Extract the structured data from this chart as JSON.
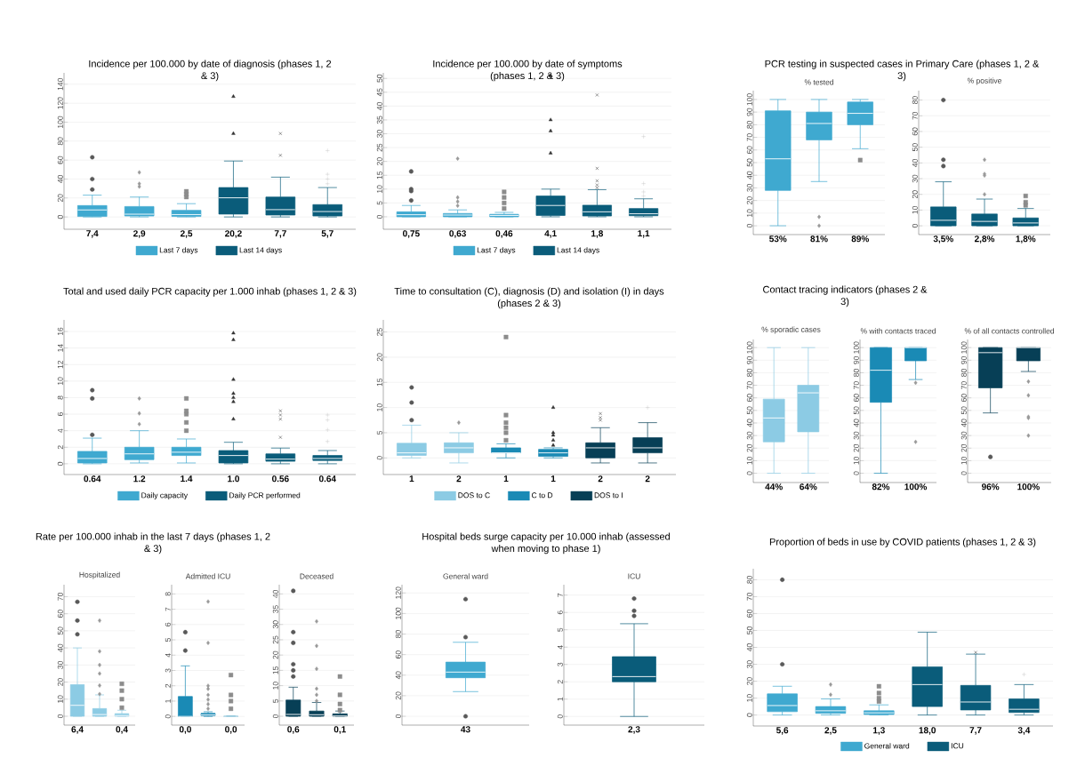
{
  "chart_data": [
    {
      "type": "box",
      "title": "Incidence per 100.000 by date of diagnosis (phases 1, 2 & 3)",
      "categories": [
        "7,4",
        "2,9",
        "2,5",
        "20,2",
        "7,7",
        "5,7"
      ],
      "ylim": [
        -13,
        152
      ],
      "yticks": [
        0,
        20,
        40,
        60,
        80,
        100,
        120,
        140
      ],
      "grid": "y",
      "legend": "bottom",
      "series": [
        {
          "name": "Last 7 days",
          "color": "#3fa9d0",
          "boxes": [
            {
              "low": 0,
              "q1": 0.5,
              "median": 7.4,
              "q3": 12,
              "high": 23,
              "outliers": [
                29,
                40,
                63
              ]
            },
            {
              "low": 0,
              "q1": 1,
              "median": 2.9,
              "q3": 11,
              "high": 21,
              "outliers": [
                32,
                35,
                47
              ]
            },
            {
              "low": 0,
              "q1": 0.5,
              "median": 2.5,
              "q3": 7,
              "high": 14,
              "outliers": [
                21,
                24,
                27
              ]
            },
            null,
            null,
            null
          ]
        },
        {
          "name": "Last 14 days",
          "color": "#0a5c7a",
          "boxes": [
            null,
            null,
            null,
            {
              "low": 0,
              "q1": 3,
              "median": 20.2,
              "q3": 31,
              "high": 59,
              "outliers": [
                88,
                127
              ]
            },
            {
              "low": 0,
              "q1": 2,
              "median": 7.7,
              "q3": 21,
              "high": 42,
              "outliers": [
                65,
                88
              ]
            },
            {
              "low": 0,
              "q1": 1,
              "median": 5.7,
              "q3": 13,
              "high": 31,
              "outliers": [
                35,
                40,
                45,
                70
              ]
            }
          ]
        }
      ]
    },
    {
      "type": "box",
      "title": "Incidence per 100.000 by date of symptoms (phases 1, 2 & 3)",
      "categories": [
        "0,75",
        "0,63",
        "0,46",
        "4,1",
        "1,8",
        "1,1"
      ],
      "ylim": [
        -4.5,
        52
      ],
      "yticks": [
        0,
        5,
        10,
        15,
        20,
        25,
        30,
        35,
        40,
        45,
        50
      ],
      "grid": "y",
      "legend": "bottom",
      "series": [
        {
          "name": "Last 7 days",
          "color": "#3fa9d0",
          "boxes": [
            {
              "low": 0,
              "q1": 0,
              "median": 0.75,
              "q3": 1.8,
              "high": 4.1,
              "outliers": [
                5.9,
                9.3,
                10,
                16.4
              ]
            },
            {
              "low": 0,
              "q1": 0,
              "median": 0.63,
              "q3": 1.2,
              "high": 2.5,
              "outliers": [
                4,
                5.5,
                7,
                21
              ]
            },
            {
              "low": 0,
              "q1": 0,
              "median": 0.46,
              "q3": 0.9,
              "high": 1.6,
              "outliers": [
                3,
                5,
                7,
                9
              ]
            },
            null,
            null,
            null
          ]
        },
        {
          "name": "Last 14 days",
          "color": "#0a5c7a",
          "boxes": [
            null,
            null,
            null,
            {
              "low": 0,
              "q1": 0.5,
              "median": 4.1,
              "q3": 7.5,
              "high": 10,
              "outliers": [
                23,
                31,
                35,
                51
              ]
            },
            {
              "low": 0,
              "q1": 0.3,
              "median": 1.8,
              "q3": 4.2,
              "high": 9.8,
              "outliers": [
                10.5,
                11.5,
                13,
                17.5,
                44
              ]
            },
            {
              "low": 0,
              "q1": 0.4,
              "median": 1.1,
              "q3": 3,
              "high": 6.5,
              "outliers": [
                7.5,
                9,
                12,
                29
              ]
            }
          ]
        }
      ]
    },
    {
      "type": "box",
      "title": "PCR testing in suspected cases in Primary Care (phases 1, 2 & 3)",
      "subtitle": "% tested",
      "categories": [
        "53%",
        "81%",
        "89%"
      ],
      "ylim": [
        -7,
        107
      ],
      "yticks": [
        0,
        10,
        20,
        30,
        40,
        50,
        60,
        70,
        80,
        90,
        100
      ],
      "grid": "y",
      "series": [
        {
          "color": "#3fa9d0",
          "boxes": [
            {
              "low": 0,
              "q1": 28,
              "median": 53,
              "q3": 91,
              "high": 100
            },
            {
              "low": 35,
              "q1": 68,
              "median": 81,
              "q3": 90,
              "high": 100,
              "outliers": [
                0,
                7
              ]
            },
            {
              "low": 61,
              "q1": 80,
              "median": 89,
              "q3": 98,
              "high": 100,
              "outliers": [
                52
              ]
            }
          ]
        }
      ]
    },
    {
      "type": "box",
      "subtitle": "% positive",
      "categories": [
        "3,5%",
        "2,8%",
        "1,8%"
      ],
      "ylim": [
        -5.6,
        86
      ],
      "yticks": [
        0,
        10,
        20,
        30,
        40,
        50,
        60,
        70,
        80
      ],
      "grid": "y",
      "series": [
        {
          "color": "#0a5c7a",
          "boxes": [
            {
              "low": 0,
              "q1": 0,
              "median": 3.5,
              "q3": 12,
              "high": 28,
              "outliers": [
                38,
                42,
                80
              ]
            },
            {
              "low": 0,
              "q1": 0,
              "median": 2.8,
              "q3": 7.5,
              "high": 17,
              "outliers": [
                20,
                32,
                33,
                42
              ]
            },
            {
              "low": 0,
              "q1": 0,
              "median": 1.8,
              "q3": 5,
              "high": 11,
              "outliers": [
                13,
                15,
                19
              ]
            }
          ]
        }
      ]
    },
    {
      "type": "box",
      "title": "Total and used daily PCR capacity per 1.000 inhab (phases 1, 2 & 3)",
      "categories": [
        "0.64",
        "1.2",
        "1.4",
        "1.0",
        "0.56",
        "0.64"
      ],
      "ylim": [
        -1.3,
        17.4
      ],
      "yticks": [
        0,
        2,
        4,
        6,
        8,
        10,
        12,
        14,
        16
      ],
      "grid": "y",
      "legend": "bottom",
      "series": [
        {
          "name": "Daily capacity",
          "color": "#3fa9d0",
          "boxes": [
            {
              "low": 0,
              "q1": 0.1,
              "median": 0.64,
              "q3": 1.5,
              "high": 3.1,
              "outliers": [
                3.5,
                7.9,
                8.9
              ]
            },
            {
              "low": 0.1,
              "q1": 0.5,
              "median": 1.2,
              "q3": 2,
              "high": 4,
              "outliers": [
                4.8,
                6.1,
                7.9
              ]
            },
            {
              "low": 0.1,
              "q1": 1,
              "median": 1.4,
              "q3": 2,
              "high": 3,
              "outliers": [
                4,
                5,
                6,
                6.4,
                7.9
              ]
            },
            null,
            null,
            null
          ]
        },
        {
          "name": "Daily PCR performed",
          "color": "#0a5c7a",
          "boxes": [
            null,
            null,
            null,
            {
              "low": 0,
              "q1": 0.1,
              "median": 1.0,
              "q3": 1.6,
              "high": 2.6,
              "outliers": [
                5.4,
                7.5,
                8,
                8.5,
                10.2,
                15,
                15.8
              ]
            },
            {
              "low": 0,
              "q1": 0.3,
              "median": 0.56,
              "q3": 1.2,
              "high": 1.9,
              "outliers": [
                3.2,
                5.4,
                5.9,
                6.4
              ]
            },
            {
              "low": 0,
              "q1": 0.4,
              "median": 0.64,
              "q3": 1,
              "high": 1.6,
              "outliers": [
                2.7,
                4.1,
                5.3,
                5.9
              ]
            }
          ]
        }
      ]
    },
    {
      "type": "box",
      "title": "Time to consultation (C), diagnosis (D) and isolation (I) in days (phases 2 & 3)",
      "categories": [
        "1",
        "2",
        "1",
        "1",
        "2",
        "2"
      ],
      "ylim": [
        -3.3,
        27.4
      ],
      "yticks": [
        0,
        5,
        10,
        15,
        20,
        25
      ],
      "grid": "y",
      "legend": "bottom",
      "series": [
        {
          "name": "DOS to C",
          "color": "#8ccbe4",
          "boxes": [
            {
              "low": 0,
              "q1": 0.5,
              "median": 1,
              "q3": 2.9,
              "high": 6.5,
              "outliers": [
                7.5,
                11,
                14
              ]
            },
            {
              "low": -1,
              "q1": 1,
              "median": 2,
              "q3": 3,
              "high": 5,
              "outliers": [
                7
              ]
            },
            null,
            null,
            null,
            null
          ]
        },
        {
          "name": "C to D",
          "color": "#1a8ab5",
          "boxes": [
            null,
            null,
            {
              "low": 0,
              "q1": 1,
              "median": 1,
              "q3": 2,
              "high": 2.8,
              "outliers": [
                3.5,
                5,
                6,
                7,
                8.5,
                24
              ]
            },
            {
              "low": 0,
              "q1": 0.3,
              "median": 1,
              "q3": 1.7,
              "high": 2,
              "outliers": [
                2.5,
                3.5,
                4.5,
                5,
                10
              ]
            },
            null,
            null
          ]
        },
        {
          "name": "DOS to I",
          "color": "#073f56",
          "boxes": [
            null,
            null,
            null,
            null,
            {
              "low": -1,
              "q1": 0,
              "median": 2,
              "q3": 3,
              "high": 6,
              "outliers": [
                7.5,
                8,
                8.8
              ]
            },
            {
              "low": -1,
              "q1": 1,
              "median": 2,
              "q3": 4,
              "high": 7,
              "outliers": [
                10
              ]
            }
          ]
        }
      ]
    },
    {
      "type": "box",
      "title": "Contact tracing indicators (phases 2 & 3)",
      "subtitle": "% sporadic cases",
      "categories": [
        "44%",
        "64%"
      ],
      "ylim": [
        -7.4,
        106.5
      ],
      "yticks": [
        0,
        10,
        20,
        30,
        40,
        50,
        60,
        70,
        80,
        90,
        100
      ],
      "grid": "y",
      "series": [
        {
          "color": "#8ccbe4",
          "boxes": [
            {
              "low": 0,
              "q1": 25,
              "median": 44,
              "q3": 59,
              "high": 100
            },
            {
              "low": 0,
              "q1": 33,
              "median": 64,
              "q3": 70,
              "high": 100
            }
          ]
        }
      ]
    },
    {
      "type": "box",
      "subtitle": "% with contacts traced",
      "categories": [
        "82%",
        "100%"
      ],
      "ylim": [
        -7.4,
        106.5
      ],
      "yticks": [
        0,
        10,
        20,
        30,
        40,
        50,
        60,
        70,
        80,
        90,
        100
      ],
      "grid": "y",
      "series": [
        {
          "color": "#1a8ab5",
          "boxes": [
            {
              "low": 0,
              "q1": 56.5,
              "median": 82,
              "q3": 100,
              "high": 100
            },
            {
              "low": 74.6,
              "q1": 89.5,
              "median": 100,
              "q3": 100,
              "high": 100,
              "outliers": [
                25,
                72
              ]
            }
          ]
        }
      ]
    },
    {
      "type": "box",
      "subtitle": "% of all contacts controlled",
      "categories": [
        "96%",
        "100%"
      ],
      "ylim": [
        -7.4,
        106.5
      ],
      "yticks": [
        0,
        10,
        20,
        30,
        40,
        50,
        60,
        70,
        80,
        90,
        100
      ],
      "grid": "y",
      "series": [
        {
          "color": "#073f56",
          "boxes": [
            {
              "low": 48,
              "q1": 68,
              "median": 96,
              "q3": 100,
              "high": 100,
              "outliers": [
                13
              ]
            },
            {
              "low": 81,
              "q1": 89.5,
              "median": 100,
              "q3": 100,
              "high": 100,
              "outliers": [
                30,
                44,
                45,
                62,
                73
              ]
            }
          ]
        }
      ]
    },
    {
      "type": "box",
      "title": "Rate per 100.000 inhab in the last 7 days (phases 1, 2 & 3)",
      "subtitle": "Hospitalized",
      "categories": [
        "6,4",
        null,
        "0,4"
      ],
      "ylim": [
        -5.2,
        77
      ],
      "yticks": [
        0,
        10,
        20,
        30,
        40,
        50,
        60,
        70
      ],
      "grid": "y",
      "series": [
        {
          "color": "#8ccbe4",
          "boxes": [
            {
              "low": 0,
              "q1": 0,
              "median": 6.4,
              "q3": 18.5,
              "high": 40,
              "outliers": [
                48,
                56,
                67
              ]
            },
            {
              "low": 0,
              "q1": 0,
              "median": 1,
              "q3": 4.5,
              "high": 12.5,
              "outliers": [
                13,
                18,
                25,
                30,
                38,
                56
              ]
            },
            {
              "low": 0,
              "q1": 0,
              "median": 0.4,
              "q3": 1.5,
              "high": 3.5,
              "outliers": [
                5,
                10,
                15,
                19
              ]
            }
          ]
        }
      ]
    },
    {
      "type": "box",
      "subtitle": "Admitted ICU",
      "categories": [
        "0,0",
        null,
        "0,0"
      ],
      "ylim": [
        -0.57,
        8.6
      ],
      "yticks": [
        0,
        1,
        2,
        3,
        4,
        5,
        6,
        7,
        8
      ],
      "grid": "y",
      "series": [
        {
          "color": "#1a8ab5",
          "boxes": [
            {
              "low": 0,
              "q1": 0,
              "median": 0,
              "q3": 1.3,
              "high": 3.3,
              "outliers": [
                4.3,
                5.5
              ]
            },
            {
              "low": 0,
              "q1": 0.05,
              "median": 0.1,
              "q3": 0.2,
              "high": 0.3,
              "outliers": [
                0.5,
                0.8,
                1.1,
                1.4,
                1.8,
                2,
                4.8,
                7.5
              ]
            },
            {
              "low": 0,
              "q1": 0,
              "median": 0,
              "q3": 0,
              "high": 0,
              "outliers": [
                0.5,
                1,
                1.4,
                2.7
              ]
            }
          ]
        }
      ]
    },
    {
      "type": "box",
      "subtitle": "Deceased",
      "categories": [
        "0,6",
        null,
        "0,1"
      ],
      "ylim": [
        -2.9,
        43
      ],
      "yticks": [
        0,
        5,
        10,
        15,
        20,
        25,
        30,
        35,
        40
      ],
      "grid": "y",
      "series": [
        {
          "color": "#073f56",
          "boxes": [
            {
              "low": 0,
              "q1": 0,
              "median": 0.6,
              "q3": 5.3,
              "high": 9.5,
              "outliers": [
                13,
                15,
                17,
                24,
                27.5,
                41
              ]
            },
            {
              "low": 0,
              "q1": 0,
              "median": 0.5,
              "q3": 1.7,
              "high": 4.5,
              "outliers": [
                5,
                7,
                9,
                15.5,
                23,
                31
              ]
            },
            {
              "low": 0,
              "q1": 0,
              "median": 0.1,
              "q3": 0.8,
              "high": 1.7,
              "outliers": [
                2,
                4,
                7,
                13
              ]
            }
          ]
        }
      ]
    },
    {
      "type": "box",
      "title": "Hospital beds surge capacity per 10.000 inhab (assessed when moving to phase 1)",
      "subtitle": "General ward",
      "categories": [
        "43"
      ],
      "ylim": [
        -8.6,
        128
      ],
      "yticks": [
        0,
        20,
        40,
        60,
        80,
        100,
        120
      ],
      "grid": "y",
      "series": [
        {
          "color": "#3fa9d0",
          "boxes": [
            {
              "low": 24,
              "q1": 37.5,
              "median": 43,
              "q3": 52.7,
              "high": 72,
              "outliers": [
                0,
                77,
                114
              ]
            }
          ]
        }
      ]
    },
    {
      "type": "box",
      "subtitle": "ICU",
      "categories": [
        "2,3"
      ],
      "ylim": [
        -0.5,
        7.6
      ],
      "yticks": [
        0,
        1,
        2,
        3,
        4,
        5,
        6,
        7
      ],
      "grid": "y",
      "series": [
        {
          "color": "#0a5c7a",
          "boxes": [
            {
              "low": 0,
              "q1": 2,
              "median": 2.3,
              "q3": 3.45,
              "high": 5.35,
              "outliers": [
                5.8,
                6.1,
                6.8
              ]
            }
          ]
        }
      ]
    },
    {
      "type": "box",
      "title": "Proportion of beds in use by COVID patients (phases 1, 2 & 3)",
      "categories": [
        "5,6",
        "2,5",
        "1,3",
        "18,0",
        "7,7",
        "3,4"
      ],
      "ylim": [
        -6.5,
        86.5
      ],
      "yticks": [
        0,
        10,
        20,
        30,
        40,
        50,
        60,
        70,
        80
      ],
      "grid": "y",
      "legend": "bottom",
      "series": [
        {
          "name": "General ward",
          "color": "#3fa9d0",
          "boxes": [
            {
              "low": 0,
              "q1": 2,
              "median": 5.6,
              "q3": 12.5,
              "high": 17,
              "outliers": [
                30,
                80
              ]
            },
            {
              "low": 0,
              "q1": 1,
              "median": 2.5,
              "q3": 5,
              "high": 9.5,
              "outliers": [
                12,
                18
              ]
            },
            {
              "low": 0,
              "q1": 0.3,
              "median": 1.3,
              "q3": 2.5,
              "high": 6,
              "outliers": [
                8,
                10,
                13,
                17
              ]
            },
            null,
            null,
            null
          ]
        },
        {
          "name": "ICU",
          "color": "#0a5c7a",
          "boxes": [
            null,
            null,
            null,
            {
              "low": 0,
              "q1": 5,
              "median": 18.0,
              "q3": 28.5,
              "high": 49
            },
            {
              "low": 0,
              "q1": 3,
              "median": 7.7,
              "q3": 17.5,
              "high": 36,
              "outliers": [
                37
              ]
            },
            {
              "low": 0,
              "q1": 1.5,
              "median": 3.4,
              "q3": 9.5,
              "high": 18,
              "outliers": [
                24
              ]
            }
          ]
        }
      ]
    }
  ]
}
